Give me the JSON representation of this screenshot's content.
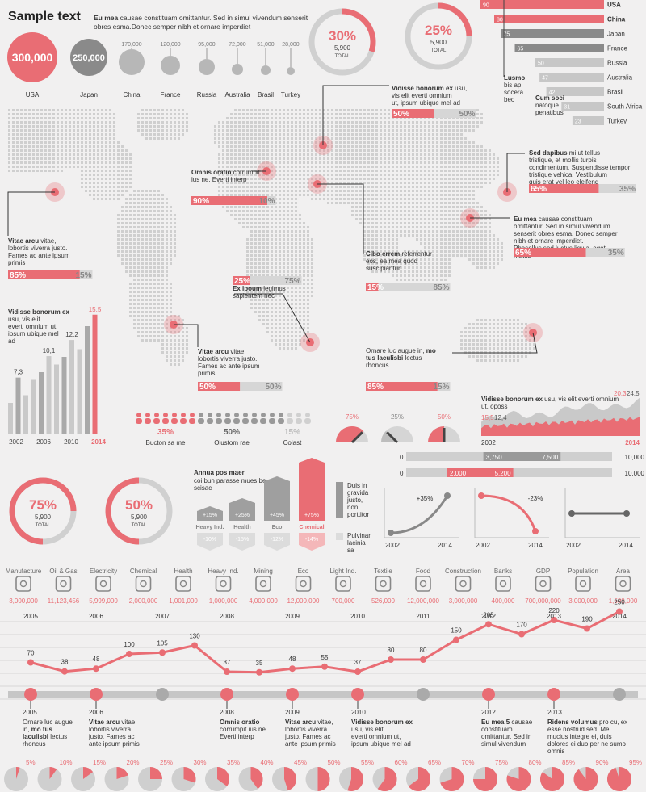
{
  "header": {
    "title": "Sample text",
    "sub_bold": "Eu mea",
    "sub_text": "causae constituam omittantur. Sed in simul vivendum senserit obres esma.Donec semper nibh et ornare imperdiet"
  },
  "bubbles": [
    {
      "label": "USA",
      "value": "300,000"
    },
    {
      "label": "Japan",
      "value": "250,000"
    },
    {
      "label": "China",
      "value": "170,000"
    },
    {
      "label": "France",
      "value": "120,000"
    },
    {
      "label": "Russia",
      "value": "95,000"
    },
    {
      "label": "Australia",
      "value": "72,000"
    },
    {
      "label": "Brasil",
      "value": "51,000"
    },
    {
      "label": "Turkey",
      "value": "28,000"
    }
  ],
  "donuts_top": [
    {
      "percent": "30%",
      "value": "5,900",
      "total": "TOTAL",
      "fraction": 0.3
    },
    {
      "percent": "25%",
      "value": "5,900",
      "total": "TOTAL",
      "fraction": 0.25
    }
  ],
  "country_bars": [
    {
      "num": "90",
      "country": "USA",
      "value": 90,
      "bold": true
    },
    {
      "num": "80",
      "country": "China",
      "value": 80,
      "bold": true
    },
    {
      "num": "75",
      "country": "Japan",
      "value": 75,
      "bold": false
    },
    {
      "num": "65",
      "country": "France",
      "value": 65,
      "bold": false
    },
    {
      "num": "50",
      "country": "Russia",
      "value": 50,
      "bold": false
    },
    {
      "num": "47",
      "country": "Australia",
      "value": 47,
      "bold": false
    },
    {
      "num": "42",
      "country": "Brasil",
      "value": 42,
      "bold": false
    },
    {
      "num": "31",
      "country": "South Africa",
      "value": 31,
      "bold": false
    },
    {
      "num": "23",
      "country": "Turkey",
      "value": 23,
      "bold": false
    }
  ],
  "lusmo": {
    "title": "Lusmo",
    "text": "bis ap socera beo"
  },
  "cumsoci": {
    "title": "Cum soci",
    "text": "natoque penatibus"
  },
  "map_callouts": [
    {
      "bold": "Vitae arcu",
      "text": "vitae, lobortis viverra justo. Fames ac ante ipsum primis",
      "pct_a": "85%",
      "pct_b": "15%",
      "frac": 0.85
    },
    {
      "bold": "Omnis oratio",
      "text": "corrumpit ius ne. Everti interp",
      "pct_a": "90%",
      "pct_b": "10%",
      "frac": 0.9
    },
    {
      "bold": "Vidisse bonorum ex",
      "text": "usu, vis elit everti omnium ut, ipsum ubique mel ad",
      "pct_a": "50%",
      "pct_b": "50%",
      "frac": 0.5
    },
    {
      "bold": "Sed dapibus",
      "text": "mi ut tellus tristique, et mollis turpis condimentum. Suspendisse tempor tristique vehica. Vestibulum quis erat vel leo eleifend",
      "pct_a": "65%",
      "pct_b": "35%",
      "frac": 0.65
    },
    {
      "bold": "Eu mea",
      "text": "causae constituam omittantur. Sed in simul vivendum senserit obres esma. Donec semper nibh et ornare imperdiet. Phasellus sed luctus ligula, eget mattis",
      "pct_a": "65%",
      "pct_b": "35%",
      "frac": 0.65
    },
    {
      "bold": "Cibo errem",
      "text": "referrentur eos, ea mea quod suscipiantur",
      "pct_a": "15%",
      "pct_b": "85%",
      "frac": 0.15
    },
    {
      "bold": "Ex ipoum",
      "text": "legimus sapientem nec",
      "pct_a": "25%",
      "pct_b": "75%",
      "frac": 0.25
    },
    {
      "bold": "Vitae arcu",
      "text": "vitae, lobortis viverra justo. Fames ac ante ipsum primis",
      "pct_a": "50%",
      "pct_b": "50%",
      "frac": 0.5
    },
    {
      "pre": "Ornare luc augue in,",
      "bold": "mo tus laculisbi",
      "text": "lectus rhoncus",
      "pct_a": "85%",
      "pct_b": "15%",
      "frac": 0.85
    }
  ],
  "bar_chart_left": {
    "title_bold": "Vidisse bonorum ex",
    "title_text": "usu, vis elit everti omnium ut, ipsum ubique mel ad",
    "labels": [
      "7,3",
      "10,1",
      "12,2",
      "15,5"
    ],
    "years": [
      "2002",
      "2006",
      "2010",
      "2014"
    ]
  },
  "people": [
    {
      "pct": "35%",
      "label": "Bucton sa me"
    },
    {
      "pct": "50%",
      "label": "Olustom rae"
    },
    {
      "pct": "15%",
      "label": "Colast"
    }
  ],
  "gauges": [
    {
      "pct": "75%",
      "value": 0.75
    },
    {
      "pct": "25%",
      "value": 0.25
    },
    {
      "pct": "50%",
      "value": 0.5
    }
  ],
  "area_chart": {
    "title_bold": "Vidisse bonorum ex",
    "title_text": "usu, vis elit everti omnium ut, oposs",
    "labels": [
      "15,5",
      "12,4",
      "20,3",
      "24,5"
    ],
    "years": [
      "2002",
      "2014"
    ]
  },
  "range_bars": [
    {
      "start": "0",
      "a": "3,750",
      "b": "7,500",
      "end": "10,000"
    },
    {
      "start": "0",
      "a": "2,000",
      "b": "5,200",
      "end": "10,000"
    }
  ],
  "donuts_bottom": [
    {
      "percent": "75%",
      "value": "5,900",
      "total": "TOTAL",
      "fraction": 0.75
    },
    {
      "percent": "50%",
      "value": "5,900",
      "total": "TOTAL",
      "fraction": 0.5
    }
  ],
  "hex_chart": {
    "title": "Annua pos maer",
    "sub": "coi bun parasse mues be scisac",
    "items": [
      {
        "up": "+15%",
        "label": "Heavy Ind.",
        "down": "-10%"
      },
      {
        "up": "+25%",
        "label": "Health",
        "down": "-15%"
      },
      {
        "up": "+45%",
        "label": "Eco",
        "down": "-12%"
      },
      {
        "up": "+75%",
        "label": "Chemical",
        "down": "-14%"
      }
    ],
    "legend_a": "Duis in gravida justo, non porttitor",
    "legend_b": "Pulvinar lacinia sa"
  },
  "mini_charts": [
    {
      "label": "+35%",
      "years": [
        "2002",
        "2014"
      ]
    },
    {
      "label": "-23%",
      "years": [
        "2002",
        "2014"
      ]
    },
    {
      "label": "",
      "years": [
        "2002",
        "2014"
      ]
    }
  ],
  "industries": [
    {
      "name": "Manufacture",
      "value": "3,000,000",
      "icon": "factory-icon"
    },
    {
      "name": "Oil & Gas",
      "value": "11,123,456",
      "icon": "drop-icon"
    },
    {
      "name": "Electricity",
      "value": "5,999,000",
      "icon": "lightning-icon"
    },
    {
      "name": "Chemical",
      "value": "2,000,000",
      "icon": "flask-icon"
    },
    {
      "name": "Health",
      "value": "1,001,000",
      "icon": "cross-icon"
    },
    {
      "name": "Heavy Ind.",
      "value": "1,000,000",
      "icon": "gear-icon"
    },
    {
      "name": "Mining",
      "value": "4,000,000",
      "icon": "mountain-icon"
    },
    {
      "name": "Eco",
      "value": "12,000,000",
      "icon": "leaf-icon"
    },
    {
      "name": "Light Ind.",
      "value": "700,000",
      "icon": "spool-icon"
    },
    {
      "name": "Textile",
      "value": "526,000",
      "icon": "shirt-icon"
    },
    {
      "name": "Food",
      "value": "12,000,000",
      "icon": "wheat-icon"
    },
    {
      "name": "Construction",
      "value": "3,000,000",
      "icon": "brick-icon"
    },
    {
      "name": "Banks",
      "value": "400,000",
      "icon": "bank-icon"
    },
    {
      "name": "GDP",
      "value": "700,000,000",
      "icon": "dollar-icon"
    },
    {
      "name": "Population",
      "value": "3,000,000",
      "icon": "person-icon"
    },
    {
      "name": "Area",
      "value": "1,500,000",
      "icon": "area-icon"
    }
  ],
  "chart_data": {
    "type": "line",
    "x_top": [
      "2005",
      "2006",
      "2007",
      "2008",
      "2009",
      "2010",
      "2011",
      "2012",
      "2013",
      "2014"
    ],
    "values": [
      70,
      38,
      48,
      100,
      105,
      130,
      37,
      35,
      48,
      55,
      37,
      80,
      80,
      150,
      205,
      170,
      220,
      190,
      250
    ],
    "labels": [
      "70",
      "38",
      "48",
      "100",
      "105",
      "130",
      "37",
      "35",
      "48",
      "55",
      "37",
      "80",
      "80",
      "150",
      "205",
      "170",
      "220",
      "190",
      "250"
    ]
  },
  "timeline": [
    {
      "year": "2005",
      "pre": "Ornare luc augue in,",
      "bold": "mo tus laculisbi",
      "text": "lectus rhoncus"
    },
    {
      "year": "2006",
      "bold": "Vitae arcu",
      "text": "vitae, lobortis viverra justo. Fames ac ante ipsum primis"
    },
    {
      "year": "2008",
      "bold": "Omnis oratio",
      "text": "corrumpit ius ne. Everti interp"
    },
    {
      "year": "2009",
      "bold": "Vitae arcu",
      "text": "vitae, lobortis viverra justo. Fames ac ante ipsum primis"
    },
    {
      "year": "2010",
      "bold": "Vidisse bonorum ex",
      "text": "usu, vis elit everti omnium ut, ipsum ubique mel ad"
    },
    {
      "year": "2012",
      "bold": "Eu mea 5",
      "text": "causae constituam omittantur. Sed in simul vivendum"
    },
    {
      "year": "2013",
      "bold": "Ridens volumus",
      "text": "pro cu, ex esse nostrud sed. Mei mucius integre ei, duis dolores ei duo per ne sumo omnis"
    }
  ],
  "pies": [
    "5%",
    "10%",
    "15%",
    "20%",
    "25%",
    "30%",
    "35%",
    "40%",
    "45%",
    "50%",
    "55%",
    "60%",
    "65%",
    "70%",
    "75%",
    "80%",
    "85%",
    "90%",
    "95%"
  ],
  "colors": {
    "accent": "#e96d74",
    "gray": "#b7b7b7",
    "dark_gray": "#8a8a8a",
    "light": "#dcdcdc"
  }
}
